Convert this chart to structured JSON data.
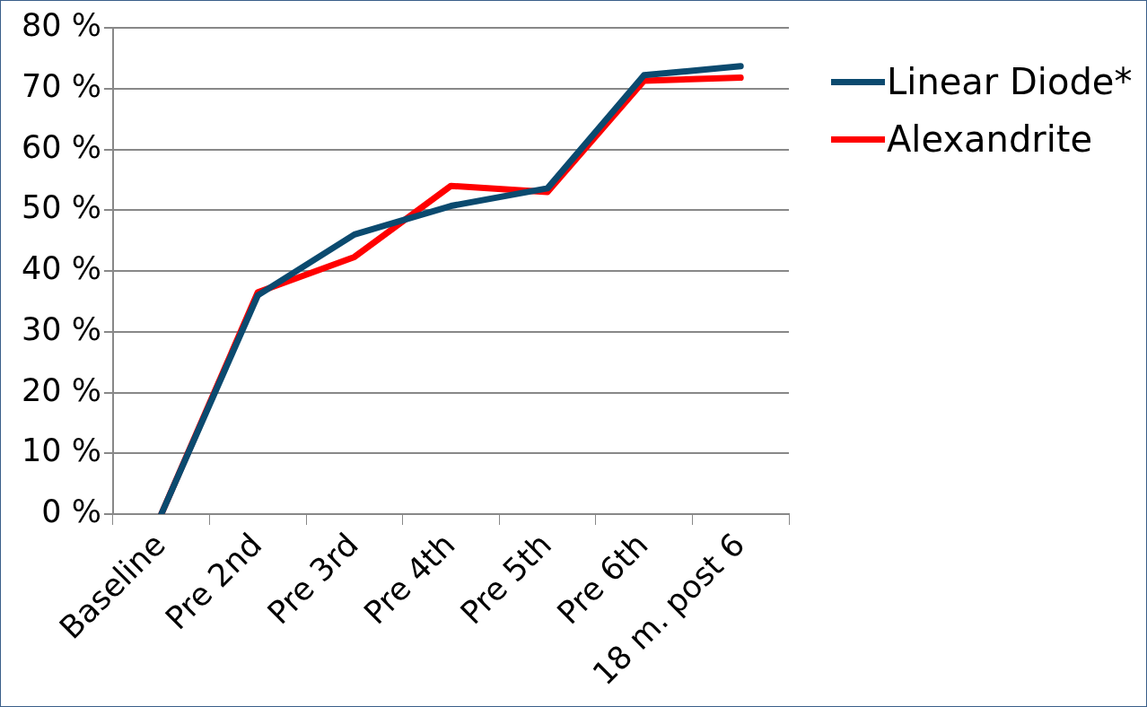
{
  "chart_data": {
    "type": "line",
    "categories": [
      "Baseline",
      "Pre 2nd",
      "Pre 3rd",
      "Pre 4th",
      "Pre 5th",
      "Pre 6th",
      "18 m. post 6"
    ],
    "series": [
      {
        "name": "Linear Diode*",
        "color": "#0b4a6f",
        "values": [
          0,
          36,
          46,
          50.7,
          53.6,
          72.2,
          73.7
        ]
      },
      {
        "name": "Alexandrite",
        "color": "#ff0000",
        "values": [
          0,
          36.5,
          42.3,
          54,
          53,
          71.3,
          71.8
        ]
      }
    ],
    "ylim": [
      0,
      80
    ],
    "yticks": [
      {
        "value": 0,
        "label": "0 %"
      },
      {
        "value": 10,
        "label": "10 %"
      },
      {
        "value": 20,
        "label": "20 %"
      },
      {
        "value": 30,
        "label": "30 %"
      },
      {
        "value": 40,
        "label": "40 %"
      },
      {
        "value": 50,
        "label": "50 %"
      },
      {
        "value": 60,
        "label": "60 %"
      },
      {
        "value": 70,
        "label": "70 %"
      },
      {
        "value": 80,
        "label": "80 %"
      }
    ],
    "grid": "y",
    "legend": "top right"
  }
}
